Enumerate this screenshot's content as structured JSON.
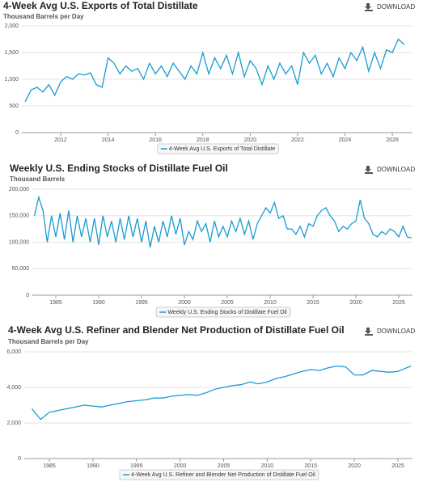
{
  "download_buttons": [
    "DOWNLOAD",
    "DOWNLOAD",
    "DOWNLOAD"
  ],
  "chart_data": [
    {
      "type": "line",
      "title": "4-Week Avg U.S. Exports of Total Distillate",
      "y_label": "Thousand Barrels per Day",
      "x": [
        2010.5,
        2010.75,
        2011,
        2011.25,
        2011.5,
        2011.75,
        2012,
        2012.25,
        2012.5,
        2012.75,
        2013,
        2013.25,
        2013.5,
        2013.75,
        2014,
        2014.25,
        2014.5,
        2014.75,
        2015,
        2015.25,
        2015.5,
        2015.75,
        2016,
        2016.25,
        2016.5,
        2016.75,
        2017,
        2017.25,
        2017.5,
        2017.75,
        2018,
        2018.25,
        2018.5,
        2018.75,
        2019,
        2019.25,
        2019.5,
        2019.75,
        2020,
        2020.25,
        2020.5,
        2020.75,
        2021,
        2021.25,
        2021.5,
        2021.75,
        2022,
        2022.25,
        2022.5,
        2022.75,
        2023,
        2023.25,
        2023.5,
        2023.75,
        2024,
        2024.25,
        2024.5,
        2024.75,
        2025,
        2025.25,
        2025.5,
        2025.75,
        2026,
        2026.25,
        2026.5
      ],
      "series": [
        {
          "name": "4-Week Avg U.S. Exports of Total Distillate",
          "color": "#1a9bd0",
          "values": [
            580,
            800,
            850,
            760,
            900,
            700,
            950,
            1050,
            1000,
            1100,
            1080,
            1120,
            900,
            850,
            1400,
            1300,
            1100,
            1250,
            1150,
            1200,
            1000,
            1300,
            1100,
            1250,
            1050,
            1300,
            1150,
            1000,
            1250,
            1100,
            1500,
            1100,
            1400,
            1200,
            1450,
            1100,
            1500,
            1050,
            1350,
            1200,
            900,
            1250,
            1000,
            1300,
            1100,
            1250,
            900,
            1500,
            1300,
            1450,
            1100,
            1300,
            1050,
            1400,
            1200,
            1500,
            1350,
            1600,
            1150,
            1500,
            1200,
            1550,
            1500,
            1750,
            1650
          ]
        }
      ],
      "xlim": [
        2010.36,
        2026.85
      ],
      "xticks": [
        2012,
        2014,
        2016,
        2018,
        2020,
        2022,
        2024,
        2026
      ],
      "ylim": [
        0,
        2000
      ],
      "yticks": [
        0,
        500,
        {
          "value": 1000,
          "label": "1,000"
        },
        {
          "value": 1500,
          "label": "1,500"
        },
        {
          "value": 2000,
          "label": "2,000"
        }
      ],
      "grid": true
    },
    {
      "type": "line",
      "title": "Weekly U.S. Ending Stocks of Distillate Fuel Oil",
      "y_label": "Thousand Barrels",
      "x": [
        1982.5,
        1983,
        1983.5,
        1984,
        1984.5,
        1985,
        1985.5,
        1986,
        1986.5,
        1987,
        1987.5,
        1988,
        1988.5,
        1989,
        1989.5,
        1990,
        1990.5,
        1991,
        1991.5,
        1992,
        1992.5,
        1993,
        1993.5,
        1994,
        1994.5,
        1995,
        1995.5,
        1996,
        1996.5,
        1997,
        1997.5,
        1998,
        1998.5,
        1999,
        1999.5,
        2000,
        2000.5,
        2001,
        2001.5,
        2002,
        2002.5,
        2003,
        2003.5,
        2004,
        2004.5,
        2005,
        2005.5,
        2006,
        2006.5,
        2007,
        2007.5,
        2008,
        2008.5,
        2009,
        2009.5,
        2010,
        2010.5,
        2011,
        2011.5,
        2012,
        2012.5,
        2013,
        2013.5,
        2014,
        2014.5,
        2015,
        2015.5,
        2016,
        2016.5,
        2017,
        2017.5,
        2018,
        2018.5,
        2019,
        2019.5,
        2020,
        2020.5,
        2021,
        2021.5,
        2022,
        2022.5,
        2023,
        2023.5,
        2024,
        2024.5,
        2025,
        2025.5,
        2026,
        2026.5
      ],
      "series": [
        {
          "name": "Weekly U.S. Ending Stocks of Distillate Fuel Oil",
          "color": "#1a9bd0",
          "values": [
            150000,
            185000,
            160000,
            100000,
            150000,
            110000,
            155000,
            105000,
            160000,
            100000,
            150000,
            110000,
            145000,
            100000,
            145000,
            95000,
            150000,
            110000,
            140000,
            100000,
            145000,
            105000,
            150000,
            110000,
            145000,
            100000,
            140000,
            90000,
            130000,
            100000,
            140000,
            110000,
            150000,
            115000,
            145000,
            95000,
            120000,
            105000,
            140000,
            120000,
            135000,
            100000,
            140000,
            110000,
            130000,
            110000,
            140000,
            120000,
            145000,
            115000,
            140000,
            105000,
            135000,
            150000,
            165000,
            155000,
            175000,
            145000,
            150000,
            125000,
            125000,
            115000,
            130000,
            110000,
            135000,
            130000,
            150000,
            160000,
            165000,
            150000,
            140000,
            120000,
            130000,
            125000,
            135000,
            140000,
            180000,
            145000,
            135000,
            115000,
            110000,
            120000,
            115000,
            125000,
            120000,
            110000,
            130000,
            110000,
            108000
          ]
        }
      ],
      "xlim": [
        1982.26,
        2026.6
      ],
      "xticks": [
        1985,
        1990,
        1995,
        2000,
        2005,
        2010,
        2015,
        2020,
        2025
      ],
      "ylim": [
        0,
        200000
      ],
      "yticks": [
        0,
        {
          "value": 50000,
          "label": "50,000"
        },
        {
          "value": 100000,
          "label": "100,000"
        },
        {
          "value": 150000,
          "label": "150,000"
        },
        {
          "value": 200000,
          "label": "200,000"
        }
      ],
      "grid": true
    },
    {
      "type": "line",
      "title": "4-Week Avg U.S. Refiner and Blender Net Production of Distillate Fuel Oil",
      "y_label": "Thousand Barrels per Day",
      "x": [
        1983,
        1984,
        1985,
        1986,
        1987,
        1988,
        1989,
        1990,
        1991,
        1992,
        1993,
        1994,
        1995,
        1996,
        1997,
        1998,
        1999,
        2000,
        2001,
        2002,
        2003,
        2004,
        2005,
        2006,
        2007,
        2008,
        2009,
        2010,
        2011,
        2012,
        2013,
        2014,
        2015,
        2016,
        2017,
        2018,
        2019,
        2020,
        2021,
        2022,
        2023,
        2024,
        2025,
        2026,
        2026.5
      ],
      "series": [
        {
          "name": "4-Week Avg U.S. Refiner and Blender Net Production of Distillate Fuel Oil",
          "color": "#1a9bd0",
          "values": [
            2800,
            2200,
            2600,
            2700,
            2800,
            2900,
            3000,
            2950,
            2900,
            3000,
            3100,
            3200,
            3250,
            3300,
            3400,
            3400,
            3500,
            3550,
            3600,
            3550,
            3700,
            3900,
            4000,
            4100,
            4150,
            4300,
            4200,
            4300,
            4500,
            4600,
            4750,
            4900,
            5000,
            4950,
            5100,
            5200,
            5150,
            4700,
            4700,
            4950,
            4900,
            4850,
            4900,
            5100,
            5200
          ]
        }
      ],
      "xlim": [
        1982.12,
        2026.67
      ],
      "xticks": [
        1985,
        1990,
        1995,
        2000,
        2005,
        2010,
        2015,
        2020,
        2025
      ],
      "ylim": [
        0,
        6000
      ],
      "yticks": [
        0,
        {
          "value": 2000,
          "label": "2,000"
        },
        {
          "value": 4000,
          "label": "4,000"
        },
        {
          "value": 6000,
          "label": "6,000"
        }
      ],
      "grid": true
    }
  ]
}
